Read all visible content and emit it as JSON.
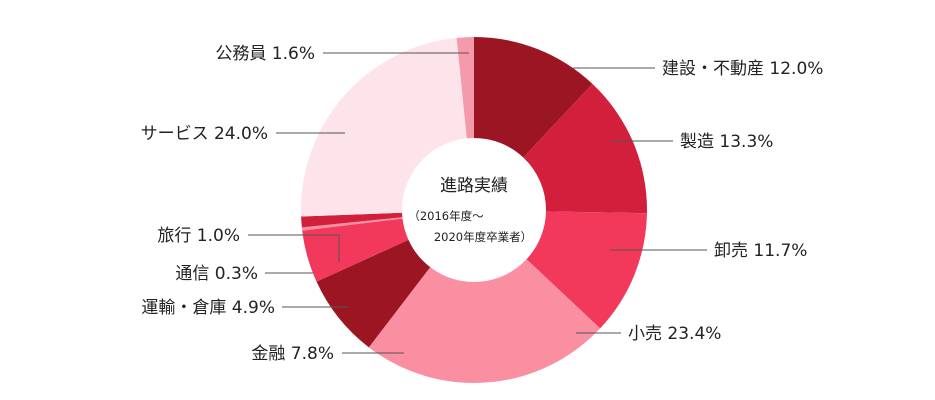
{
  "chart_data": {
    "type": "donut",
    "title": "進路実績",
    "subtitle_line1": "（2016年度～",
    "subtitle_line2": "2020年度卒業者）",
    "unit": "%",
    "slices": [
      {
        "name": "建設・不動産",
        "value": 12.0,
        "color": "#9c1522"
      },
      {
        "name": "製造",
        "value": 13.3,
        "color": "#d11f3c"
      },
      {
        "name": "卸売",
        "value": 11.7,
        "color": "#f2385b"
      },
      {
        "name": "小売",
        "value": 23.4,
        "color": "#fa8fa2"
      },
      {
        "name": "金融",
        "value": 7.8,
        "color": "#9c1522"
      },
      {
        "name": "運輸・倉庫",
        "value": 4.9,
        "color": "#f2385b"
      },
      {
        "name": "通信",
        "value": 0.3,
        "color": "#fa8fa2"
      },
      {
        "name": "旅行",
        "value": 1.0,
        "color": "#d11f3c"
      },
      {
        "name": "サービス",
        "value": 24.0,
        "color": "#fde4ea"
      },
      {
        "name": "公務員",
        "value": 1.6,
        "color": "#f59aab"
      }
    ]
  },
  "labels": [
    "建設・不動産 12.0%",
    "製造 13.3%",
    "卸売 11.7%",
    "小売 23.4%",
    "金融 7.8%",
    "運輸・倉庫 4.9%",
    "通信 0.3%",
    "旅行 1.0%",
    "サービス 24.0%",
    "公務員 1.6%"
  ],
  "colors": {
    "leader_line": "#555555",
    "text": "#222222",
    "hole": "#ffffff"
  }
}
